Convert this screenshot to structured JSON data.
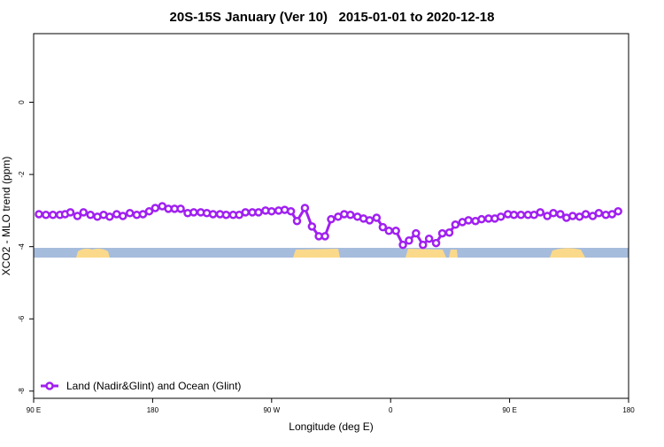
{
  "chart_data": {
    "type": "line",
    "title": "20S-15S January (Ver 10)   2015-01-01 to 2020-12-18",
    "x_label": "Longitude (deg E)",
    "y_label": "XCO2 - MLO trend (ppm)",
    "xlim": [
      90,
      540
    ],
    "ylim": [
      -8.2,
      1.9
    ],
    "xticks": [
      {
        "value": 90,
        "label": "90 E"
      },
      180,
      {
        "value": 270,
        "label": "90 W"
      },
      {
        "value": 360,
        "label": "0"
      },
      {
        "value": 450,
        "label": "90 E"
      },
      {
        "value": 540,
        "label": "180"
      }
    ],
    "yticks": [
      0,
      -2,
      -4,
      -6,
      -8
    ],
    "legend": "bottom-left",
    "x": [
      94.0,
      99.3,
      104.6,
      109.9,
      113.8,
      117.8,
      123.1,
      127.7,
      133.0,
      138.2,
      142.9,
      147.5,
      152.8,
      157.5,
      162.8,
      168.0,
      172.7,
      177.4,
      182.0,
      187.3,
      191.9,
      196.6,
      201.2,
      206.5,
      211.1,
      216.4,
      221.0,
      225.7,
      231.0,
      235.6,
      240.9,
      245.5,
      250.2,
      255.4,
      260.1,
      265.4,
      270.0,
      275.3,
      279.9,
      284.6,
      289.2,
      295.2,
      300.5,
      305.7,
      310.4,
      315.0,
      320.3,
      324.9,
      329.6,
      334.9,
      339.5,
      344.1,
      349.4,
      354.1,
      358.7,
      364.0,
      369.3,
      373.9,
      379.2,
      384.5,
      389.1,
      394.4,
      399.1,
      404.4,
      409.0,
      414.3,
      418.9,
      424.2,
      428.8,
      434.1,
      438.8,
      443.4,
      448.7,
      453.3,
      458.6,
      463.9,
      468.5,
      473.2,
      478.5,
      483.1,
      488.4,
      493.0,
      497.7,
      502.9,
      507.6,
      512.9,
      517.5,
      522.8,
      527.5,
      532.1
    ],
    "series": [
      {
        "name": "Land (Nadir&Glint) and Ocean (Glint)",
        "color": "#a020f0",
        "values": [
          -3.1,
          -3.12,
          -3.12,
          -3.12,
          -3.1,
          -3.05,
          -3.15,
          -3.05,
          -3.12,
          -3.17,
          -3.12,
          -3.17,
          -3.1,
          -3.15,
          -3.07,
          -3.12,
          -3.1,
          -3.02,
          -2.93,
          -2.88,
          -2.95,
          -2.95,
          -2.95,
          -3.07,
          -3.05,
          -3.05,
          -3.07,
          -3.1,
          -3.1,
          -3.12,
          -3.12,
          -3.12,
          -3.05,
          -3.05,
          -3.05,
          -3.0,
          -3.02,
          -3.0,
          -2.98,
          -3.02,
          -3.29,
          -2.93,
          -3.44,
          -3.71,
          -3.71,
          -3.24,
          -3.17,
          -3.1,
          -3.12,
          -3.17,
          -3.22,
          -3.27,
          -3.2,
          -3.46,
          -3.56,
          -3.56,
          -3.95,
          -3.83,
          -3.63,
          -3.95,
          -3.78,
          -3.9,
          -3.63,
          -3.61,
          -3.39,
          -3.32,
          -3.27,
          -3.29,
          -3.24,
          -3.22,
          -3.22,
          -3.17,
          -3.1,
          -3.12,
          -3.12,
          -3.12,
          -3.12,
          -3.05,
          -3.15,
          -3.07,
          -3.1,
          -3.2,
          -3.15,
          -3.17,
          -3.1,
          -3.15,
          -3.07,
          -3.12,
          -3.1,
          -3.02
        ]
      }
    ]
  }
}
